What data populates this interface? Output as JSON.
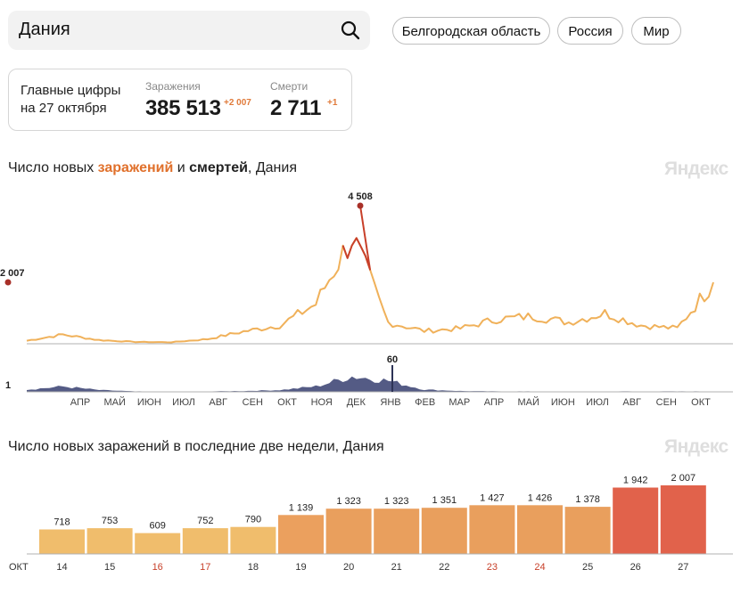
{
  "search": {
    "value": "Дания"
  },
  "regions": [
    "Белгородская область",
    "Россия",
    "Мир"
  ],
  "summary": {
    "title_line1": "Главные цифры",
    "title_line2": "на 27 октября",
    "infections_label": "Заражения",
    "infections_value": "385 513",
    "infections_delta": "+2 007",
    "deaths_label": "Смерти",
    "deaths_value": "2 711",
    "deaths_delta": "+1"
  },
  "chart1": {
    "title_pre": "Число новых ",
    "title_infections": "заражений",
    "title_mid": " и ",
    "title_deaths": "смертей",
    "title_post": ", Дания",
    "watermark": "Яндекс",
    "current_infections_label": "2 007",
    "peak_infections_label": "4 508",
    "current_deaths_label": "1",
    "peak_deaths_label": "60",
    "months": [
      "АПР",
      "МАЙ",
      "ИЮН",
      "ИЮЛ",
      "АВГ",
      "СЕН",
      "ОКТ",
      "НОЯ",
      "ДЕК",
      "ЯНВ",
      "ФЕВ",
      "МАР",
      "АПР",
      "МАЙ",
      "ИЮН",
      "ИЮЛ",
      "АВГ",
      "СЕН",
      "ОКТ"
    ],
    "colors": {
      "infections": "#f0b15a",
      "infections_peak": "#c8402a",
      "deaths": "#545b85",
      "axis": "#999999"
    }
  },
  "chart2": {
    "title": "Число новых заражений в последние две недели, Дания",
    "watermark": "Яндекс",
    "month_label": "ОКТ"
  },
  "chart_data": [
    {
      "type": "area",
      "title": "Число новых заражений и смертей, Дания",
      "series": [
        {
          "name": "заражений",
          "x": [
            "Mar",
            "Apr",
            "May",
            "Jun",
            "Jul",
            "Aug",
            "Sep",
            "Oct",
            "Nov",
            "Dec",
            "Jan",
            "Feb",
            "Mar",
            "Apr",
            "May",
            "Jun",
            "Jul",
            "Aug",
            "Sep",
            "Oct"
          ],
          "values": [
            100,
            300,
            120,
            60,
            50,
            150,
            400,
            600,
            1300,
            3500,
            700,
            420,
            500,
            800,
            900,
            700,
            1000,
            600,
            500,
            2007
          ],
          "peak": 4508,
          "last": 2007
        },
        {
          "name": "смертей",
          "x": [
            "Mar",
            "Apr",
            "May",
            "Jun",
            "Jul",
            "Aug",
            "Sep",
            "Oct",
            "Nov",
            "Dec",
            "Jan",
            "Feb",
            "Mar",
            "Apr",
            "May",
            "Jun",
            "Jul",
            "Aug",
            "Sep",
            "Oct"
          ],
          "values": [
            5,
            12,
            4,
            1,
            0,
            1,
            2,
            4,
            12,
            35,
            25,
            5,
            2,
            1,
            1,
            0,
            1,
            1,
            1,
            1
          ],
          "peak": 60,
          "last": 1
        }
      ],
      "xlabel": "",
      "ylabel": ""
    },
    {
      "type": "bar",
      "title": "Число новых заражений в последние две недели, Дания",
      "categories": [
        "14",
        "15",
        "16",
        "17",
        "18",
        "19",
        "20",
        "21",
        "22",
        "23",
        "24",
        "25",
        "26",
        "27"
      ],
      "values": [
        718,
        753,
        609,
        752,
        790,
        1139,
        1323,
        1323,
        1351,
        1427,
        1426,
        1378,
        1942,
        2007
      ],
      "value_labels": [
        "718",
        "753",
        "609",
        "752",
        "790",
        "1 139",
        "1 323",
        "1 323",
        "1 351",
        "1 427",
        "1 426",
        "1 378",
        "1 942",
        "2 007"
      ],
      "weekend": [
        false,
        false,
        true,
        true,
        false,
        false,
        false,
        false,
        false,
        true,
        true,
        false,
        false,
        false
      ],
      "colors": [
        "#f0bd6c",
        "#f0bd6c",
        "#f0bd6c",
        "#f0bd6c",
        "#f0bd6c",
        "#eba05e",
        "#e99f5d",
        "#e99f5d",
        "#e99f5d",
        "#e99f5d",
        "#e99f5d",
        "#e99f5d",
        "#e1624b",
        "#e1624b"
      ],
      "xlabel": "",
      "ylabel": ""
    }
  ]
}
